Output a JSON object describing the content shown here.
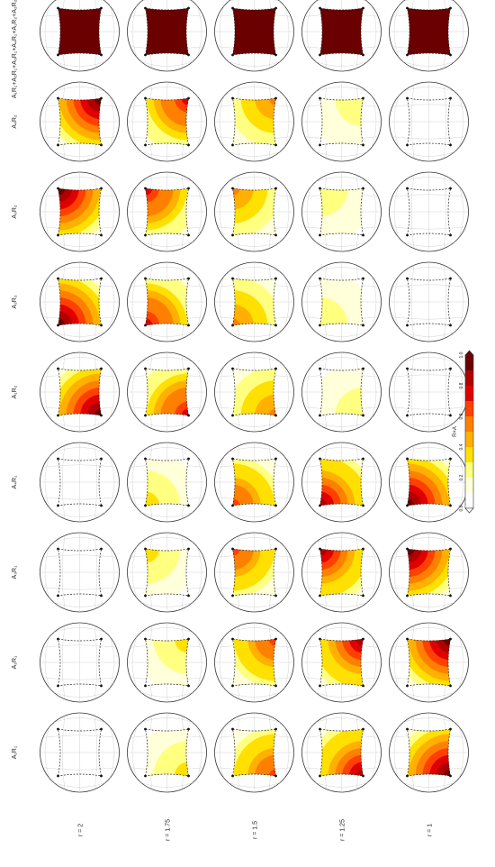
{
  "figure": {
    "row_labels": [
      "r = 2",
      "r = 1.75",
      "r = 1.5",
      "r = 1.25",
      "r = 1"
    ],
    "col_labels": [
      "A₁R₁",
      "A₂R₁",
      "A₃R₁",
      "A₄R₁",
      "A₁R₂",
      "A₂R₂",
      "A₃R₂",
      "A₄R₂",
      "A₁R₁+A₂R₁+A₃R₁+A₄R₁+A₁R₂+A₂R₂+A₃R₂+A₄R₂"
    ],
    "colorbar": {
      "label": "R×A",
      "ticks": [
        "0.0",
        "0.2",
        "0.4",
        "0.6",
        "0.8",
        "1.0"
      ],
      "colors": [
        "#ffffff",
        "#ffffd9",
        "#ffff80",
        "#ffe000",
        "#ffb000",
        "#ff8000",
        "#ff4000",
        "#e00000",
        "#b00000",
        "#6a0000"
      ]
    },
    "rotation": "counterclockwise-90",
    "intensity": [
      [
        0.0,
        0.0,
        0.0,
        0.0,
        1.0,
        1.0,
        1.0,
        1.0,
        1.0
      ],
      [
        0.35,
        0.35,
        0.35,
        0.35,
        0.75,
        0.75,
        0.75,
        0.75,
        1.0
      ],
      [
        0.65,
        0.65,
        0.65,
        0.65,
        0.5,
        0.5,
        0.5,
        0.5,
        1.0
      ],
      [
        0.85,
        0.85,
        0.85,
        0.85,
        0.25,
        0.25,
        0.25,
        0.25,
        1.0
      ],
      [
        1.0,
        1.0,
        1.0,
        1.0,
        0.0,
        0.0,
        0.0,
        0.0,
        1.0
      ]
    ],
    "corners": [
      "bottom-left",
      "bottom-right",
      "top-right",
      "top-left",
      "bottom-left",
      "top-left",
      "top-right",
      "bottom-right",
      "full"
    ]
  }
}
